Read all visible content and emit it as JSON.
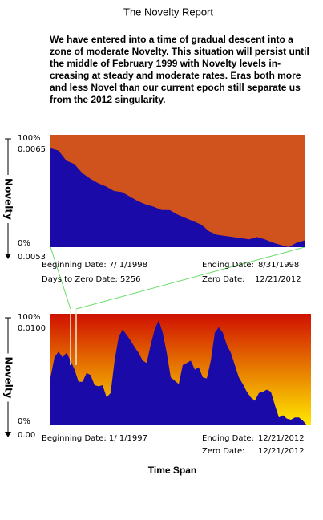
{
  "title": "The Novelty Report",
  "summary": [
    "We have entered into a time of gradual descent into a",
    "zone of moderate Novelty.  This situation will persist until",
    "the middle of February 1999 with Novelty levels in-",
    "creasing at steady and moderate rates.  Eras both more",
    "and less Novel than our current epoch still separate us",
    "from the 2012 singularity."
  ],
  "footer": "Time Span",
  "chart_data": [
    {
      "type": "area",
      "y_label": "Novelty",
      "color": "#1a0aa8",
      "background": "#d0521c",
      "ylim": [
        0,
        100
      ],
      "yticks": [
        {
          "value": 100,
          "label": "100%"
        },
        {
          "value": 0,
          "label": "0%"
        }
      ],
      "novelty_ticks": [
        "0.0065",
        "0.0053"
      ],
      "values": [
        88,
        86,
        77,
        74,
        66,
        61,
        57,
        54,
        50,
        49,
        45,
        41,
        38,
        36,
        33,
        33,
        29,
        26,
        23,
        20,
        14,
        11,
        10,
        9,
        8,
        7,
        9,
        7,
        4,
        2,
        0,
        4,
        6
      ],
      "info": [
        {
          "label": "Beginning Date:  7/ 1/1998"
        },
        {
          "label": "Ending Date:",
          "value": "8/31/1998"
        },
        {
          "label": "Days to Zero Date: 5256"
        },
        {
          "label": "Zero Date:",
          "value": "12/21/2012"
        }
      ]
    },
    {
      "type": "area",
      "y_label": "Novelty",
      "color": "#1a0aa8",
      "background_gradient": [
        "#d01000",
        "#ffe800"
      ],
      "ylim": [
        0,
        100
      ],
      "yticks": [
        {
          "value": 100,
          "label": "100%"
        },
        {
          "value": 0,
          "label": "0%"
        }
      ],
      "novelty_ticks": [
        "0.0100",
        "0.00"
      ],
      "values": [
        43,
        61,
        66,
        61,
        65,
        58,
        50,
        39,
        39,
        47,
        45,
        36,
        35,
        36,
        25,
        29,
        58,
        79,
        86,
        81,
        76,
        70,
        65,
        58,
        56,
        72,
        86,
        94,
        83,
        65,
        43,
        40,
        37,
        54,
        56,
        58,
        50,
        52,
        43,
        42,
        58,
        83,
        88,
        83,
        72,
        65,
        54,
        43,
        37,
        30,
        25,
        22,
        29,
        30,
        32,
        30,
        18,
        7,
        9,
        6,
        5,
        7,
        7,
        4,
        0,
        0
      ],
      "info": [
        {
          "label": "Beginning Date:  1/ 1/1997"
        },
        {
          "label": "Ending Date:",
          "value": "12/21/2012"
        },
        {
          "label": "Zero Date:",
          "value": "12/21/2012"
        }
      ]
    }
  ]
}
